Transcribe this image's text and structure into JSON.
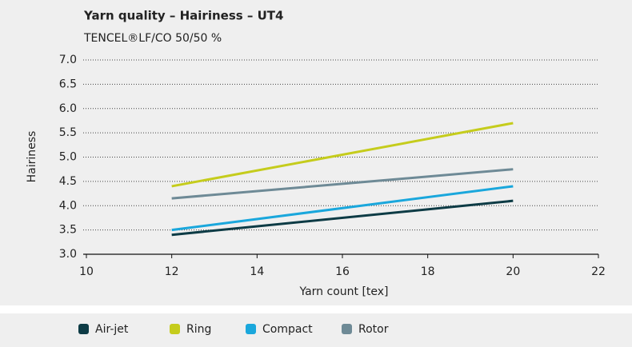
{
  "chart_data": {
    "type": "line",
    "title": "Yarn quality – Hairiness – UT4",
    "subtitle": "TENCEL®LF/CO 50/50 %",
    "x_label": "Yarn count [tex]",
    "y_label": "Hairiness",
    "x": [
      12,
      20
    ],
    "series": [
      {
        "name": "Air-jet",
        "color": "#0d3b45",
        "values": [
          3.4,
          4.1
        ]
      },
      {
        "name": "Ring",
        "color": "#c5cc1c",
        "values": [
          4.4,
          5.7
        ]
      },
      {
        "name": "Compact",
        "color": "#1aa7dc",
        "values": [
          3.5,
          4.4
        ]
      },
      {
        "name": "Rotor",
        "color": "#6e8a96",
        "values": [
          4.15,
          4.75
        ]
      }
    ],
    "xlim": [
      10,
      22
    ],
    "xticks": [
      10,
      12,
      14,
      16,
      18,
      20,
      22
    ],
    "ylim": [
      3,
      7
    ],
    "yticks": [
      {
        "value": 3,
        "label": "3.0"
      },
      3.5,
      {
        "value": 4,
        "label": "4.0"
      },
      4.5,
      {
        "value": 5,
        "label": "5.0"
      },
      5.5,
      {
        "value": 6,
        "label": "6.0"
      },
      6.5,
      {
        "value": 7,
        "label": "7.0"
      }
    ],
    "grid": true,
    "legend": "bottom"
  }
}
